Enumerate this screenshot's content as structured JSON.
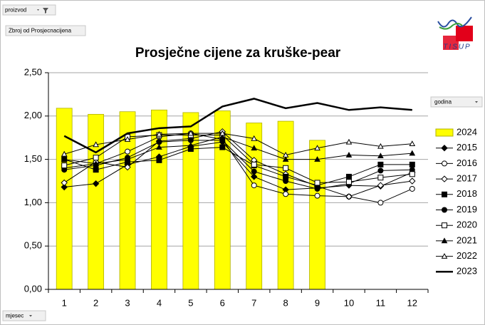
{
  "chart_data": {
    "type": "line",
    "title": "Prosječne cijene za kruške-pear",
    "page_field": "proizvod",
    "data_field": "Zbroj od Prosjecnacijena",
    "legend_field": "godina",
    "axis_field": "mjesec",
    "logo_text": "TISUP",
    "categories": [
      "1",
      "2",
      "3",
      "4",
      "5",
      "6",
      "7",
      "8",
      "9",
      "10",
      "11",
      "12"
    ],
    "ylim": [
      0,
      2.5
    ],
    "yticks": [
      {
        "value": 0,
        "label": "0,00"
      },
      {
        "value": 0.5,
        "label": "0,50"
      },
      {
        "value": 1,
        "label": "1,00"
      },
      {
        "value": 1.5,
        "label": "1,50"
      },
      {
        "value": 2,
        "label": "2,00"
      },
      {
        "value": 2.5,
        "label": "2,50"
      }
    ],
    "grid": true,
    "legend": "right",
    "series": [
      {
        "name": "2024",
        "type": "bar",
        "color": "#ffff00",
        "values": [
          2.09,
          2.02,
          2.05,
          2.07,
          2.04,
          2.06,
          1.92,
          1.94,
          1.72,
          null,
          null,
          null
        ]
      },
      {
        "name": "2015",
        "color": "#000000",
        "marker": "diamond-filled",
        "values": [
          1.18,
          1.22,
          1.44,
          1.53,
          1.65,
          1.7,
          1.3,
          1.15,
          1.17,
          1.2,
          1.19,
          1.35
        ]
      },
      {
        "name": "2016",
        "color": "#000000",
        "marker": "circle-open",
        "values": [
          1.4,
          1.45,
          1.59,
          1.76,
          1.8,
          1.73,
          1.2,
          1.1,
          1.08,
          1.07,
          1.0,
          1.16
        ]
      },
      {
        "name": "2017",
        "color": "#000000",
        "marker": "diamond-open",
        "values": [
          1.23,
          1.47,
          1.41,
          1.71,
          1.74,
          1.82,
          1.49,
          1.33,
          1.19,
          1.07,
          1.2,
          1.25
        ]
      },
      {
        "name": "2018",
        "color": "#000000",
        "marker": "square-filled",
        "values": [
          1.5,
          1.38,
          1.47,
          1.49,
          1.62,
          1.64,
          1.43,
          1.3,
          1.2,
          1.3,
          1.44,
          1.44
        ]
      },
      {
        "name": "2019",
        "color": "#000000",
        "marker": "circle-filled",
        "values": [
          1.38,
          1.43,
          1.52,
          1.7,
          1.72,
          1.72,
          1.36,
          1.25,
          1.16,
          1.22,
          1.37,
          1.38
        ]
      },
      {
        "name": "2020",
        "color": "#000000",
        "marker": "square-open",
        "values": [
          1.43,
          1.52,
          1.76,
          1.78,
          1.78,
          1.78,
          1.44,
          1.4,
          1.23,
          1.24,
          1.29,
          1.33
        ]
      },
      {
        "name": "2021",
        "color": "#000000",
        "marker": "triangle-filled",
        "values": [
          1.5,
          1.45,
          1.5,
          1.64,
          1.66,
          1.76,
          1.63,
          1.5,
          1.5,
          1.55,
          1.54,
          1.57
        ]
      },
      {
        "name": "2022",
        "color": "#000000",
        "marker": "triangle-open",
        "values": [
          1.56,
          1.67,
          1.73,
          1.79,
          1.8,
          1.8,
          1.74,
          1.55,
          1.63,
          1.7,
          1.65,
          1.68
        ]
      },
      {
        "name": "2023",
        "color": "#000000",
        "marker": "none",
        "line_width": 2.5,
        "values": [
          1.77,
          1.58,
          1.8,
          1.86,
          1.88,
          2.11,
          2.2,
          2.09,
          2.15,
          2.07,
          2.1,
          2.07
        ]
      }
    ]
  }
}
